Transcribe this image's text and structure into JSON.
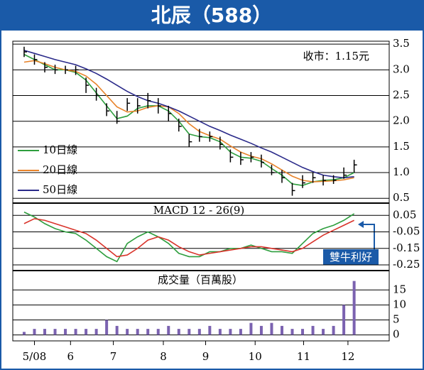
{
  "chart_data": [
    {
      "type": "candlestick",
      "title": "北辰（588）",
      "annotation": "收市：1.15元",
      "x": [
        -1,
        0,
        1,
        2,
        3,
        4,
        5,
        6,
        7,
        8,
        9,
        10,
        11,
        12,
        13,
        14,
        15,
        16,
        17,
        18,
        19,
        20,
        21,
        22,
        23,
        24,
        25,
        26,
        27,
        28,
        29,
        30,
        31
      ],
      "high": [
        3.45,
        3.3,
        3.15,
        3.1,
        3.08,
        3.08,
        2.85,
        2.65,
        2.35,
        2.2,
        2.45,
        2.45,
        2.55,
        2.45,
        2.3,
        2.05,
        1.75,
        1.85,
        1.8,
        1.7,
        1.45,
        1.4,
        1.4,
        1.35,
        1.15,
        1.05,
        0.8,
        0.95,
        1.0,
        0.95,
        0.95,
        1.1,
        1.25
      ],
      "low": [
        3.25,
        3.1,
        2.95,
        2.92,
        2.92,
        2.9,
        2.55,
        2.4,
        2.1,
        1.95,
        2.2,
        2.15,
        2.25,
        2.15,
        2.0,
        1.8,
        1.5,
        1.6,
        1.6,
        1.45,
        1.2,
        1.15,
        1.2,
        1.1,
        0.95,
        0.8,
        0.55,
        0.7,
        0.8,
        0.75,
        0.78,
        0.88,
        1.0
      ],
      "close": [
        3.35,
        3.2,
        3.05,
        3.0,
        3.0,
        3.0,
        2.7,
        2.5,
        2.2,
        2.0,
        2.35,
        2.3,
        2.4,
        2.3,
        2.15,
        1.9,
        1.6,
        1.7,
        1.7,
        1.55,
        1.3,
        1.25,
        1.3,
        1.2,
        1.0,
        0.9,
        0.65,
        0.8,
        0.9,
        0.85,
        0.85,
        0.95,
        1.15
      ],
      "series": [
        {
          "name": "10日線",
          "color": "#2e9e3e",
          "values": [
            3.3,
            3.2,
            3.1,
            3.0,
            3.0,
            2.95,
            2.8,
            2.55,
            2.3,
            2.05,
            2.1,
            2.25,
            2.3,
            2.3,
            2.2,
            2.0,
            1.75,
            1.7,
            1.68,
            1.6,
            1.4,
            1.3,
            1.28,
            1.22,
            1.08,
            0.95,
            0.78,
            0.75,
            0.82,
            0.85,
            0.86,
            0.9,
            1.0
          ]
        },
        {
          "name": "20日線",
          "color": "#e8832a",
          "values": [
            3.15,
            3.18,
            3.12,
            3.05,
            3.0,
            2.97,
            2.88,
            2.72,
            2.5,
            2.28,
            2.18,
            2.2,
            2.27,
            2.3,
            2.28,
            2.15,
            1.95,
            1.8,
            1.72,
            1.65,
            1.52,
            1.4,
            1.32,
            1.27,
            1.17,
            1.05,
            0.93,
            0.85,
            0.82,
            0.83,
            0.84,
            0.86,
            0.9
          ]
        },
        {
          "name": "50日線",
          "color": "#2a2a8a",
          "values": [
            3.38,
            3.32,
            3.26,
            3.2,
            3.15,
            3.1,
            3.02,
            2.93,
            2.82,
            2.7,
            2.58,
            2.48,
            2.4,
            2.35,
            2.28,
            2.2,
            2.1,
            2.0,
            1.9,
            1.82,
            1.73,
            1.65,
            1.57,
            1.48,
            1.4,
            1.3,
            1.2,
            1.1,
            1.02,
            0.95,
            0.92,
            0.9,
            0.92
          ]
        }
      ],
      "xlim": [
        -2.1,
        34.4
      ],
      "ylim": [
        0.42,
        3.53
      ],
      "yticks": [
        3.5,
        {
          "value": 3,
          "label": "3.0"
        },
        2.5,
        {
          "value": 2,
          "label": "2.0"
        },
        1.5,
        {
          "value": 1,
          "label": "1.0"
        },
        0.5
      ],
      "grid": true
    },
    {
      "type": "line",
      "title": "MACD 12 - 26(9)",
      "annotation": "雙牛利好",
      "x": [
        -1,
        0,
        1,
        2,
        3,
        4,
        5,
        6,
        7,
        8,
        9,
        10,
        11,
        12,
        13,
        14,
        15,
        16,
        17,
        18,
        19,
        20,
        21,
        22,
        23,
        24,
        25,
        26,
        27,
        28,
        29,
        30,
        31
      ],
      "series": [
        {
          "color": "#2e9e3e",
          "values": [
            0.07,
            0.04,
            0.0,
            -0.03,
            -0.05,
            -0.06,
            -0.1,
            -0.15,
            -0.2,
            -0.23,
            -0.12,
            -0.08,
            -0.05,
            -0.08,
            -0.12,
            -0.18,
            -0.2,
            -0.2,
            -0.17,
            -0.17,
            -0.15,
            -0.15,
            -0.13,
            -0.15,
            -0.17,
            -0.17,
            -0.18,
            -0.12,
            -0.06,
            -0.03,
            -0.01,
            0.02,
            0.06
          ]
        },
        {
          "color": "#d9342b",
          "values": [
            0.0,
            0.03,
            0.02,
            0.0,
            -0.02,
            -0.04,
            -0.06,
            -0.1,
            -0.15,
            -0.2,
            -0.19,
            -0.15,
            -0.1,
            -0.08,
            -0.1,
            -0.14,
            -0.17,
            -0.19,
            -0.18,
            -0.17,
            -0.16,
            -0.15,
            -0.14,
            -0.14,
            -0.15,
            -0.16,
            -0.17,
            -0.15,
            -0.11,
            -0.07,
            -0.04,
            -0.01,
            0.02
          ]
        }
      ],
      "xlim": [
        -2.1,
        34.4
      ],
      "ylim": [
        -0.28,
        0.12
      ],
      "yticks": [
        0.05,
        -0.05,
        -0.15,
        -0.25
      ],
      "grid": true
    },
    {
      "type": "bar",
      "title": "成交量（百萬股）",
      "color": "#7b62b0",
      "x": [
        -1,
        0,
        1,
        2,
        3,
        4,
        5,
        6,
        7,
        8,
        9,
        10,
        11,
        12,
        13,
        14,
        15,
        16,
        17,
        18,
        19,
        20,
        21,
        22,
        23,
        24,
        25,
        26,
        27,
        28,
        29,
        30,
        31
      ],
      "values": [
        1,
        2,
        2,
        2,
        2,
        2,
        2,
        2,
        5,
        3,
        2,
        2,
        2,
        2,
        3,
        2,
        2,
        2,
        3,
        2,
        2,
        2,
        4,
        3,
        4,
        3,
        2,
        2,
        3,
        2,
        3,
        10,
        18
      ],
      "xlim": [
        -2.1,
        34.4
      ],
      "ylim": [
        -2,
        21
      ],
      "yticks": [
        15,
        10,
        5,
        0
      ],
      "grid": true,
      "xticks": [
        {
          "value": 0,
          "label": "5/08"
        },
        {
          "value": 3.5,
          "label": "6"
        },
        {
          "value": 7.65,
          "label": "7"
        },
        {
          "value": 12.5,
          "label": "8"
        },
        {
          "value": 16.6,
          "label": "9"
        },
        {
          "value": 21.4,
          "label": "10"
        },
        {
          "value": 26.1,
          "label": "11"
        },
        {
          "value": 30.4,
          "label": "12"
        }
      ]
    }
  ]
}
